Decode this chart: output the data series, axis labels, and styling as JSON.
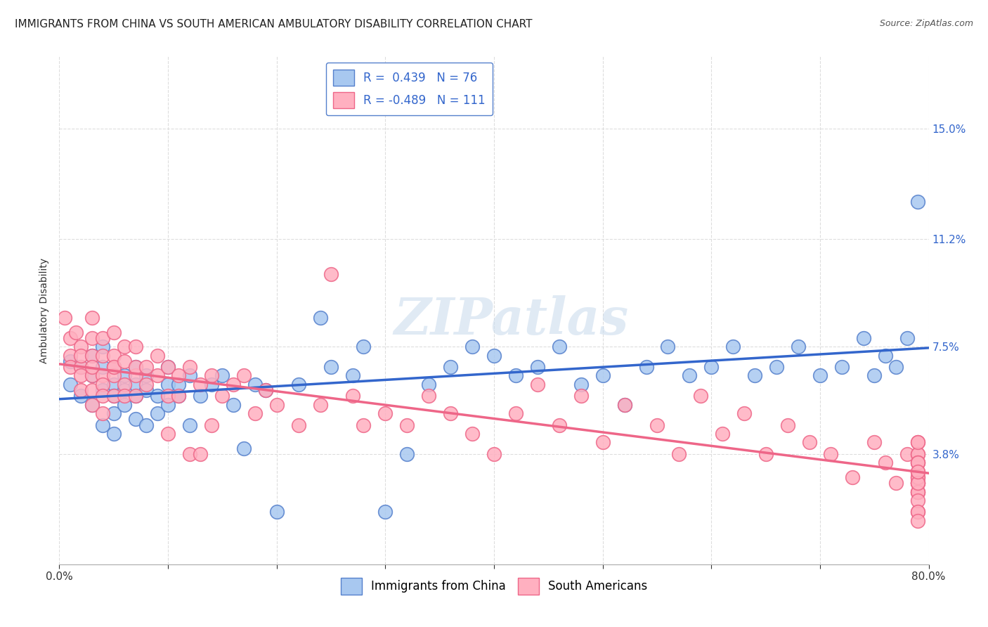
{
  "title": "IMMIGRANTS FROM CHINA VS SOUTH AMERICAN AMBULATORY DISABILITY CORRELATION CHART",
  "source": "Source: ZipAtlas.com",
  "ylabel": "Ambulatory Disability",
  "y_tick_labels": [
    "3.8%",
    "7.5%",
    "11.2%",
    "15.0%"
  ],
  "y_tick_vals": [
    0.038,
    0.075,
    0.112,
    0.15
  ],
  "xlim": [
    0.0,
    0.8
  ],
  "ylim": [
    0.0,
    0.175
  ],
  "legend_china_label": "Immigrants from China",
  "legend_sa_label": "South Americans",
  "china_R": 0.439,
  "china_N": 76,
  "sa_R": -0.489,
  "sa_N": 111,
  "china_color": "#a8c8f0",
  "sa_color": "#ffb0c0",
  "china_edge_color": "#5580cc",
  "sa_edge_color": "#ee6688",
  "china_line_color": "#3366cc",
  "sa_line_color": "#ee6688",
  "watermark": "ZIPatlas",
  "background_color": "#ffffff",
  "grid_color": "#dddddd",
  "title_fontsize": 11,
  "axis_label_fontsize": 10,
  "tick_fontsize": 11,
  "legend_fontsize": 12,
  "china_x": [
    0.01,
    0.01,
    0.02,
    0.02,
    0.03,
    0.03,
    0.03,
    0.04,
    0.04,
    0.04,
    0.04,
    0.05,
    0.05,
    0.05,
    0.05,
    0.05,
    0.06,
    0.06,
    0.06,
    0.07,
    0.07,
    0.07,
    0.07,
    0.08,
    0.08,
    0.08,
    0.09,
    0.09,
    0.1,
    0.1,
    0.1,
    0.11,
    0.11,
    0.12,
    0.12,
    0.13,
    0.14,
    0.15,
    0.16,
    0.17,
    0.18,
    0.19,
    0.2,
    0.22,
    0.24,
    0.25,
    0.27,
    0.28,
    0.3,
    0.32,
    0.34,
    0.36,
    0.38,
    0.4,
    0.42,
    0.44,
    0.46,
    0.48,
    0.5,
    0.52,
    0.54,
    0.56,
    0.58,
    0.6,
    0.62,
    0.64,
    0.66,
    0.68,
    0.7,
    0.72,
    0.74,
    0.75,
    0.76,
    0.77,
    0.78,
    0.79
  ],
  "china_y": [
    0.07,
    0.062,
    0.068,
    0.058,
    0.065,
    0.055,
    0.072,
    0.06,
    0.048,
    0.068,
    0.075,
    0.052,
    0.062,
    0.058,
    0.045,
    0.068,
    0.06,
    0.065,
    0.055,
    0.058,
    0.062,
    0.05,
    0.068,
    0.06,
    0.048,
    0.065,
    0.052,
    0.058,
    0.055,
    0.062,
    0.068,
    0.058,
    0.062,
    0.048,
    0.065,
    0.058,
    0.062,
    0.065,
    0.055,
    0.04,
    0.062,
    0.06,
    0.018,
    0.062,
    0.085,
    0.068,
    0.065,
    0.075,
    0.018,
    0.038,
    0.062,
    0.068,
    0.075,
    0.072,
    0.065,
    0.068,
    0.075,
    0.062,
    0.065,
    0.055,
    0.068,
    0.075,
    0.065,
    0.068,
    0.075,
    0.065,
    0.068,
    0.075,
    0.065,
    0.068,
    0.078,
    0.065,
    0.072,
    0.068,
    0.078,
    0.125
  ],
  "sa_x": [
    0.005,
    0.01,
    0.01,
    0.01,
    0.015,
    0.02,
    0.02,
    0.02,
    0.02,
    0.02,
    0.03,
    0.03,
    0.03,
    0.03,
    0.03,
    0.03,
    0.03,
    0.04,
    0.04,
    0.04,
    0.04,
    0.04,
    0.04,
    0.05,
    0.05,
    0.05,
    0.05,
    0.05,
    0.05,
    0.06,
    0.06,
    0.06,
    0.06,
    0.07,
    0.07,
    0.07,
    0.07,
    0.08,
    0.08,
    0.09,
    0.09,
    0.1,
    0.1,
    0.1,
    0.11,
    0.11,
    0.12,
    0.12,
    0.13,
    0.13,
    0.14,
    0.14,
    0.15,
    0.16,
    0.17,
    0.18,
    0.19,
    0.2,
    0.22,
    0.24,
    0.25,
    0.27,
    0.28,
    0.3,
    0.32,
    0.34,
    0.36,
    0.38,
    0.4,
    0.42,
    0.44,
    0.46,
    0.48,
    0.5,
    0.52,
    0.55,
    0.57,
    0.59,
    0.61,
    0.63,
    0.65,
    0.67,
    0.69,
    0.71,
    0.73,
    0.75,
    0.76,
    0.77,
    0.78,
    0.79,
    0.79,
    0.79,
    0.79,
    0.79,
    0.79,
    0.79,
    0.79,
    0.79,
    0.79,
    0.79,
    0.79,
    0.79,
    0.79,
    0.79,
    0.79,
    0.79,
    0.79,
    0.79,
    0.79,
    0.79,
    0.79
  ],
  "sa_y": [
    0.085,
    0.078,
    0.072,
    0.068,
    0.08,
    0.068,
    0.075,
    0.072,
    0.06,
    0.065,
    0.078,
    0.065,
    0.072,
    0.06,
    0.055,
    0.068,
    0.085,
    0.065,
    0.072,
    0.062,
    0.078,
    0.058,
    0.052,
    0.068,
    0.072,
    0.065,
    0.058,
    0.08,
    0.068,
    0.062,
    0.07,
    0.058,
    0.075,
    0.065,
    0.068,
    0.058,
    0.075,
    0.062,
    0.068,
    0.065,
    0.072,
    0.058,
    0.068,
    0.045,
    0.065,
    0.058,
    0.068,
    0.038,
    0.062,
    0.038,
    0.065,
    0.048,
    0.058,
    0.062,
    0.065,
    0.052,
    0.06,
    0.055,
    0.048,
    0.055,
    0.1,
    0.058,
    0.048,
    0.052,
    0.048,
    0.058,
    0.052,
    0.045,
    0.038,
    0.052,
    0.062,
    0.048,
    0.058,
    0.042,
    0.055,
    0.048,
    0.038,
    0.058,
    0.045,
    0.052,
    0.038,
    0.048,
    0.042,
    0.038,
    0.03,
    0.042,
    0.035,
    0.028,
    0.038,
    0.042,
    0.028,
    0.035,
    0.03,
    0.025,
    0.038,
    0.018,
    0.028,
    0.032,
    0.025,
    0.038,
    0.028,
    0.042,
    0.035,
    0.025,
    0.03,
    0.022,
    0.035,
    0.018,
    0.028,
    0.032,
    0.015
  ]
}
